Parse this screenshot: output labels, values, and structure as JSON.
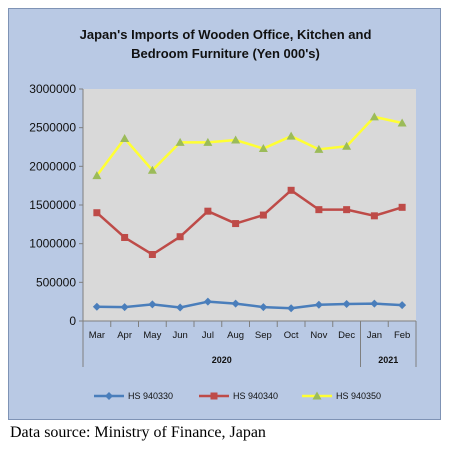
{
  "chart_data": {
    "type": "line",
    "title": "Japan's Imports of  Wooden  Office, Kitchen and Bedroom Furniture (Yen 000's)",
    "title_lines": [
      "Japan's Imports of  Wooden  Office, Kitchen and",
      "Bedroom Furniture (Yen 000's)"
    ],
    "categories": [
      "Mar",
      "Apr",
      "May",
      "Jun",
      "Jul",
      "Aug",
      "Sep",
      "Oct",
      "Nov",
      "Dec",
      "Jan",
      "Feb"
    ],
    "year_groups": [
      {
        "label": "2020",
        "from": 0,
        "to": 9
      },
      {
        "label": "2021",
        "from": 10,
        "to": 11
      }
    ],
    "ylim": [
      0,
      3000000
    ],
    "yticks": [
      0,
      500000,
      1000000,
      1500000,
      2000000,
      2500000,
      3000000
    ],
    "ytick_labels": [
      "0",
      "500000",
      "1000000",
      "1500000",
      "2000000",
      "2500000",
      "3000000"
    ],
    "grid": false,
    "legend_position": "bottom",
    "series": [
      {
        "name": "HS 940330",
        "color": "#4a7ebb",
        "marker": "diamond",
        "values": [
          185000,
          180000,
          215000,
          175000,
          250000,
          225000,
          180000,
          165000,
          210000,
          220000,
          225000,
          205000
        ]
      },
      {
        "name": "HS 940340",
        "color": "#be4b48",
        "marker": "square",
        "values": [
          1400000,
          1080000,
          860000,
          1090000,
          1420000,
          1260000,
          1370000,
          1690000,
          1440000,
          1440000,
          1360000,
          1470000
        ]
      },
      {
        "name": "HS 940350",
        "color": "#ffff33",
        "marker": "triangle",
        "marker_color": "#9bbb59",
        "values": [
          1880000,
          2360000,
          1950000,
          2310000,
          2310000,
          2340000,
          2230000,
          2390000,
          2220000,
          2260000,
          2640000,
          2560000
        ]
      }
    ]
  },
  "footer": {
    "source": "Data source: Ministry of Finance, Japan"
  }
}
